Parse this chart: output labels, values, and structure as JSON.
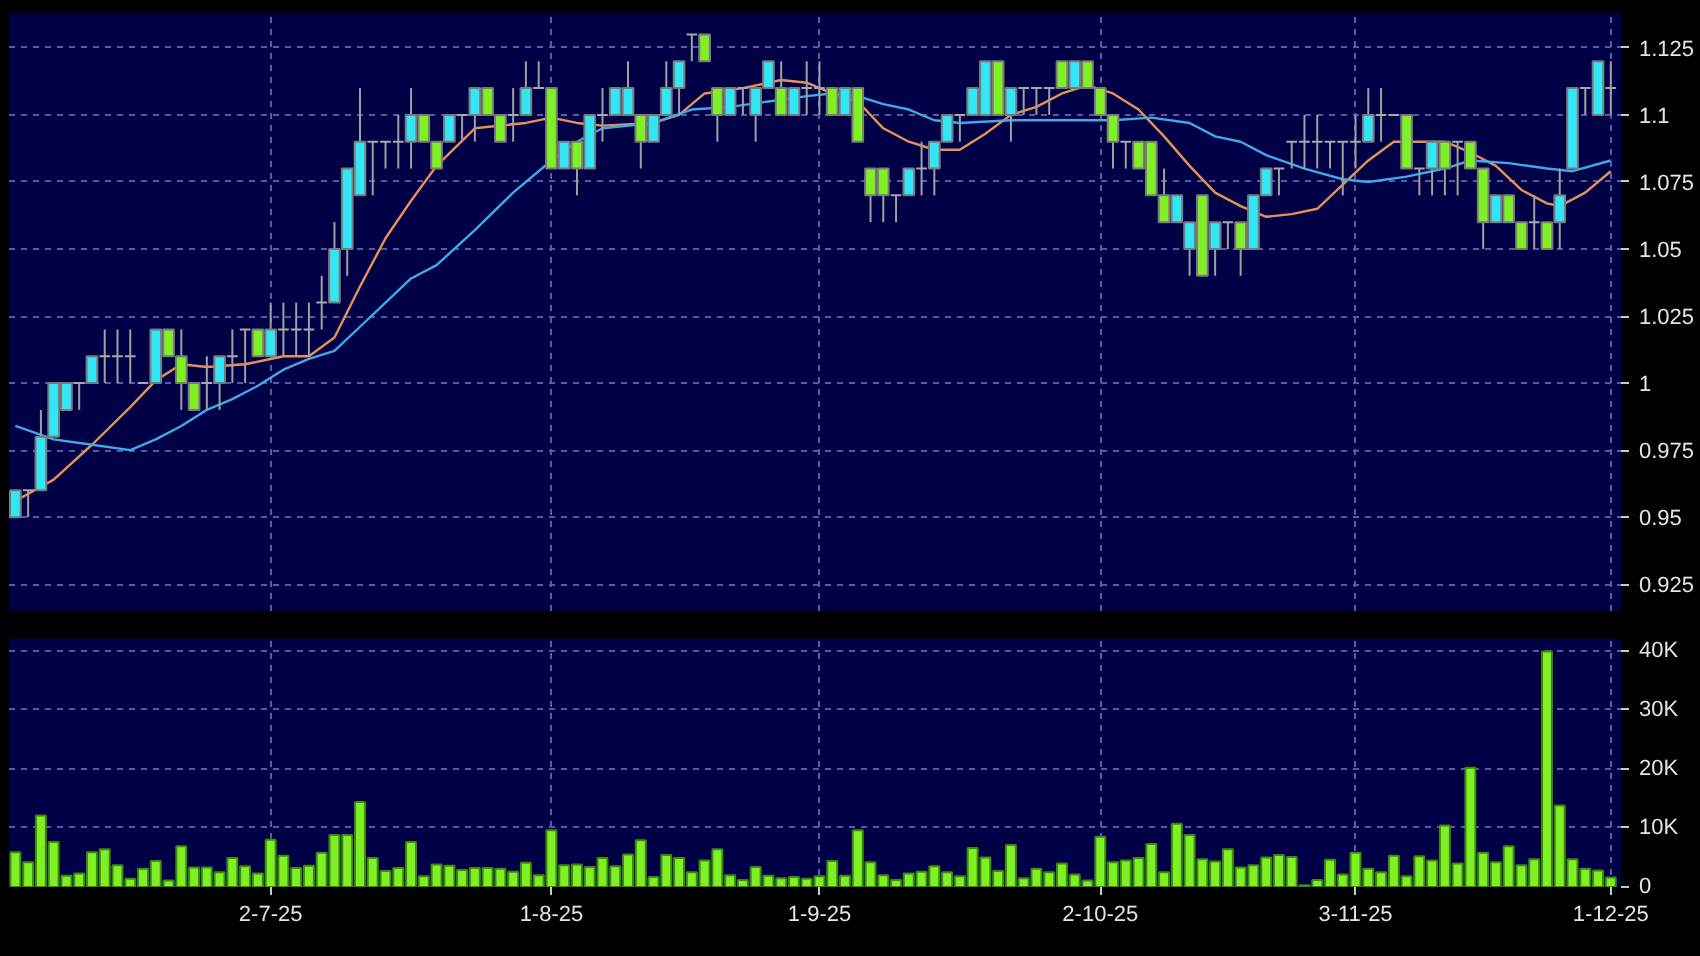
{
  "chart_data": [
    {
      "type": "candlestick",
      "categories": [
        null,
        null,
        null,
        null,
        null,
        null,
        null,
        null,
        null,
        null,
        null,
        null,
        null,
        null,
        null,
        null,
        null,
        null,
        null,
        null,
        null,
        null,
        null,
        null,
        null,
        null,
        null,
        null,
        null,
        null,
        null,
        null,
        null,
        null,
        null,
        null,
        null,
        null,
        null,
        null,
        null,
        null,
        null,
        null,
        null,
        null,
        null,
        null,
        null,
        null,
        null,
        null,
        null,
        null,
        null,
        null,
        null,
        null,
        null,
        null,
        null,
        null,
        null,
        null,
        null,
        null,
        null,
        null,
        null,
        null,
        null,
        null,
        null,
        null,
        null,
        null,
        null,
        null,
        null,
        null,
        null,
        null,
        null,
        null,
        null,
        null,
        null,
        null,
        null,
        null,
        null,
        null,
        null,
        null,
        null,
        null,
        null,
        null,
        null,
        null,
        null,
        null,
        null,
        null,
        null,
        null,
        null,
        null,
        null,
        null,
        null,
        null,
        null,
        null,
        null,
        null,
        null,
        null,
        null,
        null,
        null,
        null,
        null,
        null,
        null,
        null
      ],
      "ohlc": [
        [
          0.95,
          0.96,
          0.95,
          0.96
        ],
        [
          0.96,
          0.96,
          0.95,
          0.96
        ],
        [
          0.96,
          0.99,
          0.96,
          0.98
        ],
        [
          0.98,
          1.0,
          0.98,
          1.0
        ],
        [
          0.99,
          1.0,
          0.99,
          1.0
        ],
        [
          1.0,
          1.0,
          0.99,
          1.0
        ],
        [
          1.0,
          1.01,
          1.0,
          1.01
        ],
        [
          1.01,
          1.02,
          1.0,
          1.01
        ],
        [
          1.01,
          1.02,
          1.0,
          1.01
        ],
        [
          1.01,
          1.02,
          1.0,
          1.01
        ],
        [
          1.0,
          1.0,
          1.0,
          1.0
        ],
        [
          1.0,
          1.02,
          1.0,
          1.02
        ],
        [
          1.02,
          1.02,
          1.01,
          1.01
        ],
        [
          1.01,
          1.02,
          0.99,
          1.0
        ],
        [
          1.0,
          1.0,
          0.99,
          0.99
        ],
        [
          1.0,
          1.01,
          0.99,
          1.0
        ],
        [
          1.0,
          1.01,
          0.99,
          1.01
        ],
        [
          1.01,
          1.02,
          1.0,
          1.01
        ],
        [
          1.02,
          1.02,
          1.0,
          1.02
        ],
        [
          1.02,
          1.02,
          1.01,
          1.01
        ],
        [
          1.01,
          1.03,
          1.01,
          1.02
        ],
        [
          1.02,
          1.03,
          1.01,
          1.02
        ],
        [
          1.02,
          1.03,
          1.01,
          1.02
        ],
        [
          1.02,
          1.03,
          1.01,
          1.02
        ],
        [
          1.03,
          1.04,
          1.02,
          1.03
        ],
        [
          1.03,
          1.06,
          1.03,
          1.05
        ],
        [
          1.05,
          1.08,
          1.04,
          1.08
        ],
        [
          1.07,
          1.11,
          1.07,
          1.09
        ],
        [
          1.09,
          1.09,
          1.07,
          1.09
        ],
        [
          1.09,
          1.09,
          1.08,
          1.09
        ],
        [
          1.09,
          1.1,
          1.08,
          1.09
        ],
        [
          1.09,
          1.11,
          1.08,
          1.1
        ],
        [
          1.1,
          1.1,
          1.09,
          1.09
        ],
        [
          1.09,
          1.09,
          1.08,
          1.08
        ],
        [
          1.09,
          1.1,
          1.09,
          1.1
        ],
        [
          1.1,
          1.1,
          1.09,
          1.1
        ],
        [
          1.1,
          1.11,
          1.09,
          1.11
        ],
        [
          1.11,
          1.11,
          1.1,
          1.1
        ],
        [
          1.1,
          1.1,
          1.09,
          1.09
        ],
        [
          1.1,
          1.11,
          1.09,
          1.1
        ],
        [
          1.1,
          1.12,
          1.1,
          1.11
        ],
        [
          1.11,
          1.12,
          1.11,
          1.11
        ],
        [
          1.11,
          1.11,
          1.08,
          1.08
        ],
        [
          1.08,
          1.09,
          1.08,
          1.09
        ],
        [
          1.09,
          1.09,
          1.07,
          1.08
        ],
        [
          1.08,
          1.1,
          1.08,
          1.1
        ],
        [
          1.1,
          1.11,
          1.09,
          1.1
        ],
        [
          1.1,
          1.11,
          1.1,
          1.11
        ],
        [
          1.1,
          1.12,
          1.1,
          1.11
        ],
        [
          1.1,
          1.1,
          1.08,
          1.09
        ],
        [
          1.09,
          1.1,
          1.09,
          1.1
        ],
        [
          1.1,
          1.12,
          1.1,
          1.11
        ],
        [
          1.11,
          1.12,
          1.1,
          1.12
        ],
        [
          1.13,
          1.13,
          1.12,
          1.13
        ],
        [
          1.13,
          1.13,
          1.12,
          1.12
        ],
        [
          1.11,
          1.11,
          1.09,
          1.1
        ],
        [
          1.1,
          1.11,
          1.1,
          1.11
        ],
        [
          1.11,
          1.11,
          1.1,
          1.11
        ],
        [
          1.1,
          1.11,
          1.09,
          1.11
        ],
        [
          1.11,
          1.12,
          1.11,
          1.12
        ],
        [
          1.11,
          1.12,
          1.1,
          1.1
        ],
        [
          1.1,
          1.11,
          1.1,
          1.11
        ],
        [
          1.11,
          1.12,
          1.1,
          1.11
        ],
        [
          1.11,
          1.12,
          1.1,
          1.11
        ],
        [
          1.11,
          1.11,
          1.1,
          1.1
        ],
        [
          1.1,
          1.11,
          1.1,
          1.11
        ],
        [
          1.11,
          1.11,
          1.09,
          1.09
        ],
        [
          1.08,
          1.08,
          1.06,
          1.07
        ],
        [
          1.08,
          1.08,
          1.06,
          1.07
        ],
        [
          1.07,
          1.07,
          1.06,
          1.07
        ],
        [
          1.07,
          1.08,
          1.07,
          1.08
        ],
        [
          1.08,
          1.09,
          1.07,
          1.08
        ],
        [
          1.08,
          1.09,
          1.07,
          1.09
        ],
        [
          1.09,
          1.1,
          1.09,
          1.1
        ],
        [
          1.1,
          1.1,
          1.09,
          1.1
        ],
        [
          1.1,
          1.11,
          1.1,
          1.11
        ],
        [
          1.1,
          1.12,
          1.1,
          1.12
        ],
        [
          1.12,
          1.12,
          1.1,
          1.1
        ],
        [
          1.1,
          1.11,
          1.09,
          1.11
        ],
        [
          1.11,
          1.11,
          1.1,
          1.11
        ],
        [
          1.11,
          1.11,
          1.1,
          1.11
        ],
        [
          1.11,
          1.11,
          1.1,
          1.11
        ],
        [
          1.12,
          1.12,
          1.11,
          1.11
        ],
        [
          1.11,
          1.12,
          1.11,
          1.12
        ],
        [
          1.12,
          1.12,
          1.11,
          1.11
        ],
        [
          1.11,
          1.11,
          1.1,
          1.1
        ],
        [
          1.1,
          1.1,
          1.08,
          1.09
        ],
        [
          1.09,
          1.09,
          1.08,
          1.09
        ],
        [
          1.09,
          1.09,
          1.08,
          1.08
        ],
        [
          1.09,
          1.09,
          1.07,
          1.07
        ],
        [
          1.07,
          1.08,
          1.06,
          1.06
        ],
        [
          1.06,
          1.07,
          1.06,
          1.07
        ],
        [
          1.05,
          1.06,
          1.04,
          1.06
        ],
        [
          1.07,
          1.07,
          1.04,
          1.04
        ],
        [
          1.05,
          1.06,
          1.04,
          1.06
        ],
        [
          1.06,
          1.06,
          1.05,
          1.06
        ],
        [
          1.06,
          1.06,
          1.04,
          1.05
        ],
        [
          1.05,
          1.07,
          1.05,
          1.07
        ],
        [
          1.07,
          1.08,
          1.07,
          1.08
        ],
        [
          1.08,
          1.08,
          1.07,
          1.08
        ],
        [
          1.09,
          1.09,
          1.08,
          1.09
        ],
        [
          1.09,
          1.1,
          1.08,
          1.09
        ],
        [
          1.09,
          1.1,
          1.08,
          1.09
        ],
        [
          1.09,
          1.09,
          1.08,
          1.09
        ],
        [
          1.09,
          1.09,
          1.07,
          1.09
        ],
        [
          1.09,
          1.1,
          1.08,
          1.09
        ],
        [
          1.09,
          1.11,
          1.09,
          1.1
        ],
        [
          1.1,
          1.11,
          1.09,
          1.1
        ],
        [
          1.1,
          1.1,
          1.1,
          1.1
        ],
        [
          1.1,
          1.1,
          1.08,
          1.08
        ],
        [
          1.08,
          1.08,
          1.07,
          1.08
        ],
        [
          1.08,
          1.09,
          1.07,
          1.09
        ],
        [
          1.09,
          1.09,
          1.07,
          1.08
        ],
        [
          1.09,
          1.09,
          1.07,
          1.09
        ],
        [
          1.09,
          1.09,
          1.08,
          1.08
        ],
        [
          1.08,
          1.08,
          1.05,
          1.06
        ],
        [
          1.06,
          1.07,
          1.06,
          1.07
        ],
        [
          1.07,
          1.07,
          1.06,
          1.06
        ],
        [
          1.06,
          1.06,
          1.05,
          1.05
        ],
        [
          1.06,
          1.07,
          1.05,
          1.06
        ],
        [
          1.06,
          1.06,
          1.05,
          1.05
        ],
        [
          1.06,
          1.08,
          1.05,
          1.07
        ],
        [
          1.08,
          1.11,
          1.08,
          1.11
        ],
        [
          1.11,
          1.11,
          1.1,
          1.11
        ],
        [
          1.1,
          1.12,
          1.1,
          1.12
        ],
        [
          1.11,
          1.12,
          1.1,
          1.11
        ]
      ],
      "colors": [
        "#33e6f5",
        "#a8a8a8",
        "#33e6f5",
        "#33e6f5",
        "#33e6f5",
        "#a8a8a8",
        "#33e6f5",
        "#a8a8a8",
        "#a8a8a8",
        "#a8a8a8",
        "#a8a8a8",
        "#33e6f5",
        "#7ef024",
        "#7ef024",
        "#7ef024",
        "#a8a8a8",
        "#33e6f5",
        "#a8a8a8",
        "#a8a8a8",
        "#7ef024",
        "#33e6f5",
        "#a8a8a8",
        "#a8a8a8",
        "#a8a8a8",
        "#a8a8a8",
        "#33e6f5",
        "#33e6f5",
        "#33e6f5",
        "#a8a8a8",
        "#a8a8a8",
        "#a8a8a8",
        "#33e6f5",
        "#7ef024",
        "#7ef024",
        "#33e6f5",
        "#a8a8a8",
        "#33e6f5",
        "#7ef024",
        "#7ef024",
        "#a8a8a8",
        "#33e6f5",
        "#a8a8a8",
        "#7ef024",
        "#33e6f5",
        "#7ef024",
        "#33e6f5",
        "#a8a8a8",
        "#33e6f5",
        "#33e6f5",
        "#7ef024",
        "#33e6f5",
        "#33e6f5",
        "#33e6f5",
        "#a8a8a8",
        "#7ef024",
        "#7ef024",
        "#33e6f5",
        "#a8a8a8",
        "#33e6f5",
        "#33e6f5",
        "#7ef024",
        "#33e6f5",
        "#a8a8a8",
        "#a8a8a8",
        "#7ef024",
        "#33e6f5",
        "#7ef024",
        "#7ef024",
        "#7ef024",
        "#a8a8a8",
        "#33e6f5",
        "#a8a8a8",
        "#33e6f5",
        "#33e6f5",
        "#a8a8a8",
        "#33e6f5",
        "#33e6f5",
        "#7ef024",
        "#33e6f5",
        "#a8a8a8",
        "#a8a8a8",
        "#a8a8a8",
        "#7ef024",
        "#33e6f5",
        "#7ef024",
        "#7ef024",
        "#7ef024",
        "#a8a8a8",
        "#7ef024",
        "#7ef024",
        "#7ef024",
        "#33e6f5",
        "#33e6f5",
        "#7ef024",
        "#33e6f5",
        "#a8a8a8",
        "#7ef024",
        "#33e6f5",
        "#33e6f5",
        "#a8a8a8",
        "#a8a8a8",
        "#a8a8a8",
        "#a8a8a8",
        "#a8a8a8",
        "#a8a8a8",
        "#a8a8a8",
        "#33e6f5",
        "#a8a8a8",
        "#a8a8a8",
        "#7ef024",
        "#a8a8a8",
        "#33e6f5",
        "#7ef024",
        "#a8a8a8",
        "#7ef024",
        "#7ef024",
        "#33e6f5",
        "#7ef024",
        "#7ef024",
        "#a8a8a8",
        "#7ef024",
        "#33e6f5",
        "#33e6f5",
        "#a8a8a8",
        "#33e6f5",
        "#a8a8a8"
      ],
      "series": [
        {
          "type": "line",
          "color": "#e8905a",
          "values": [
            0.956,
            null,
            null,
            0.964,
            null,
            null,
            0.977,
            null,
            null,
            0.991,
            null,
            1.001,
            null,
            1.007,
            null,
            1.006,
            null,
            null,
            1.007,
            null,
            null,
            1.01,
            null,
            1.01,
            null,
            1.017,
            null,
            1.036,
            null,
            1.054,
            null,
            1.068,
            null,
            1.081,
            null,
            null,
            1.095,
            null,
            null,
            null,
            1.097,
            null,
            1.099,
            null,
            1.097,
            null,
            1.096,
            null,
            null,
            null,
            1.097,
            null,
            1.1,
            null,
            1.108,
            null,
            null,
            1.11,
            null,
            null,
            1.113,
            null,
            1.112,
            null,
            1.108,
            null,
            1.105,
            null,
            1.095,
            null,
            1.09,
            null,
            1.087,
            null,
            1.087,
            null,
            1.093,
            null,
            1.1,
            null,
            1.103,
            null,
            1.108,
            null,
            1.111,
            null,
            1.108,
            null,
            1.102,
            null,
            1.092,
            null,
            1.081,
            null,
            1.071,
            null,
            1.066,
            null,
            1.062,
            null,
            1.063,
            null,
            1.065,
            null,
            1.074,
            null,
            1.083,
            null,
            1.09,
            null,
            1.09,
            null,
            1.09,
            null,
            1.086,
            null,
            1.081,
            null,
            1.072,
            null,
            1.067,
            1.066,
            null,
            1.071,
            null,
            1.079
          ]
        },
        {
          "type": "line",
          "color": "#3fa9e6",
          "values": [
            0.984,
            null,
            null,
            0.979,
            null,
            null,
            0.977,
            null,
            null,
            0.975,
            null,
            0.979,
            null,
            0.984,
            null,
            0.99,
            null,
            0.994,
            null,
            0.999,
            null,
            1.005,
            null,
            1.009,
            null,
            1.012,
            null,
            1.021,
            null,
            1.03,
            null,
            1.039,
            null,
            1.044,
            null,
            null,
            1.057,
            null,
            null,
            1.071,
            null,
            null,
            1.083,
            null,
            1.09,
            null,
            1.095,
            null,
            null,
            null,
            1.097,
            null,
            null,
            1.102,
            null,
            null,
            1.103,
            null,
            null,
            1.105,
            null,
            null,
            1.107,
            null,
            1.108,
            null,
            1.107,
            null,
            1.104,
            null,
            1.102,
            null,
            1.098,
            null,
            1.097,
            null,
            null,
            null,
            1.098,
            null,
            null,
            null,
            1.098,
            null,
            null,
            null,
            1.098,
            null,
            null,
            1.099,
            null,
            null,
            1.097,
            null,
            1.092,
            null,
            1.09,
            null,
            1.085,
            null,
            null,
            1.08,
            null,
            null,
            1.076,
            null,
            1.075,
            null,
            null,
            1.077,
            null,
            null,
            1.08,
            null,
            1.083,
            null,
            null,
            1.082,
            null,
            null,
            1.08,
            null,
            1.079,
            null,
            null,
            1.083
          ]
        }
      ],
      "ylim": [
        0.915,
        1.138
      ],
      "yticks": [
        0.925,
        0.95,
        0.975,
        1,
        1.025,
        1.05,
        1.075,
        1.1,
        1.125
      ],
      "grid": true,
      "tick_labels": "y"
    },
    {
      "type": "bar",
      "categories": [
        null,
        null,
        null,
        null,
        null,
        null,
        null,
        null,
        null,
        null,
        null,
        null,
        null,
        null,
        null,
        null,
        null,
        null,
        null,
        null,
        "2-7-25",
        null,
        null,
        null,
        null,
        null,
        null,
        null,
        null,
        null,
        null,
        null,
        null,
        null,
        null,
        null,
        null,
        null,
        null,
        null,
        null,
        null,
        "1-8-25",
        null,
        null,
        null,
        null,
        null,
        null,
        null,
        null,
        null,
        null,
        null,
        null,
        null,
        null,
        null,
        null,
        null,
        null,
        null,
        null,
        "1-9-25",
        null,
        null,
        null,
        null,
        null,
        null,
        null,
        null,
        null,
        null,
        null,
        null,
        null,
        null,
        null,
        null,
        null,
        null,
        null,
        null,
        null,
        "2-10-25",
        null,
        null,
        null,
        null,
        null,
        null,
        null,
        null,
        null,
        null,
        null,
        null,
        null,
        null,
        null,
        null,
        null,
        null,
        null,
        "3-11-25",
        null,
        null,
        null,
        null,
        null,
        null,
        null,
        null,
        null,
        null,
        null,
        null,
        null,
        null,
        null,
        null,
        null,
        null,
        null,
        "1-12-25"
      ],
      "values": [
        5900,
        4200,
        12100,
        7600,
        1900,
        2300,
        5900,
        6400,
        3700,
        1400,
        3100,
        4400,
        1100,
        6900,
        3300,
        3300,
        2500,
        4900,
        3500,
        2300,
        8000,
        5300,
        3200,
        3600,
        5800,
        8800,
        8800,
        14400,
        4900,
        2700,
        3200,
        7600,
        1800,
        3800,
        3600,
        2900,
        3200,
        3200,
        3100,
        2600,
        4100,
        2000,
        9600,
        3700,
        3800,
        3400,
        4900,
        3500,
        5500,
        7900,
        1700,
        5400,
        4900,
        2500,
        4500,
        6400,
        2000,
        1200,
        3400,
        1900,
        1500,
        1700,
        1400,
        1800,
        4400,
        1900,
        9600,
        4200,
        2000,
        1200,
        2300,
        2600,
        3500,
        2500,
        1800,
        6600,
        5000,
        2700,
        7100,
        1500,
        3100,
        2500,
        4000,
        2100,
        1100,
        8500,
        4200,
        4500,
        4900,
        7300,
        2500,
        10700,
        8800,
        4700,
        4300,
        6400,
        3300,
        3700,
        5000,
        5400,
        5100,
        300,
        1200,
        4600,
        2100,
        5800,
        3100,
        2500,
        5300,
        1800,
        5200,
        4500,
        10400,
        4000,
        20200,
        5800,
        4200,
        6900,
        3700,
        4700,
        39900,
        13800,
        4700,
        3100,
        2800,
        1600
      ],
      "color": "#7ef024",
      "ylim": [
        0,
        42000
      ],
      "yticks": [
        {
          "value": 0,
          "label": "0"
        },
        {
          "value": 10000,
          "label": "10K"
        },
        {
          "value": 20000,
          "label": "20K"
        },
        {
          "value": 30000,
          "label": "30K"
        },
        {
          "value": 40000,
          "label": "40K"
        }
      ],
      "grid": true
    }
  ]
}
